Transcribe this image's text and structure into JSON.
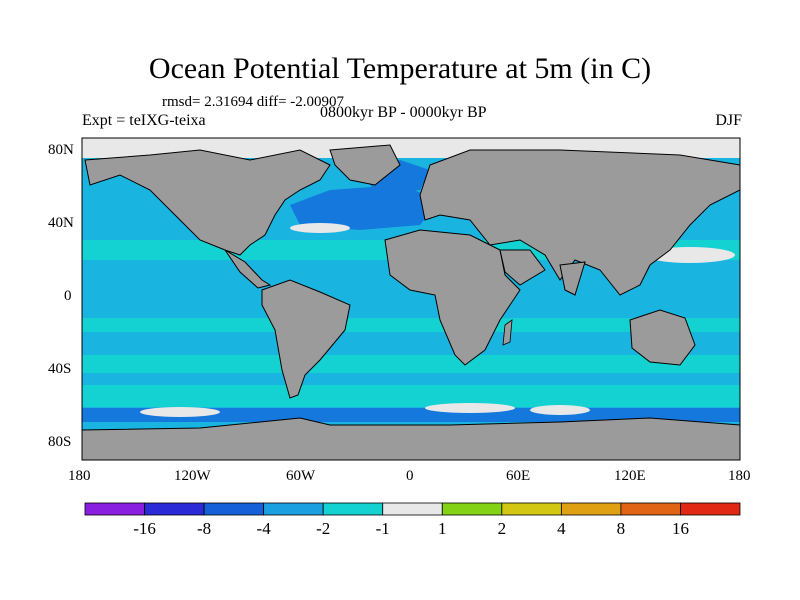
{
  "header": {
    "title": "Ocean Potential Temperature at 5m (in C)",
    "stats": "rmsd= 2.31694 diff= -2.00907",
    "experiment": "Expt = teIXG-teixa",
    "period": "0800kyr BP - 0000kyr BP",
    "season": "DJF"
  },
  "axes": {
    "lon_ticks": [
      "180",
      "120W",
      "60W",
      "0",
      "60E",
      "120E",
      "180"
    ],
    "lat_ticks": [
      "80N",
      "40N",
      "0",
      "40S",
      "80S"
    ]
  },
  "colorbar": {
    "colors": [
      "#8a1ee0",
      "#2a2ad6",
      "#1460d8",
      "#1aa0e0",
      "#14d2d2",
      "#e8e8e8",
      "#84d214",
      "#d2c814",
      "#e0a014",
      "#e06414",
      "#e02814"
    ],
    "labels": [
      "-16",
      "-8",
      "-4",
      "-2",
      "-1",
      "1",
      "2",
      "4",
      "8",
      "16"
    ]
  },
  "colors": {
    "land": "#9b9b9b",
    "ocean_base": "#1ab4e0",
    "ocean_cyan": "#14d2d2",
    "ocean_blue": "#1478dc",
    "ice_gray": "#e8e8e8",
    "warm_green": "#84d214"
  }
}
